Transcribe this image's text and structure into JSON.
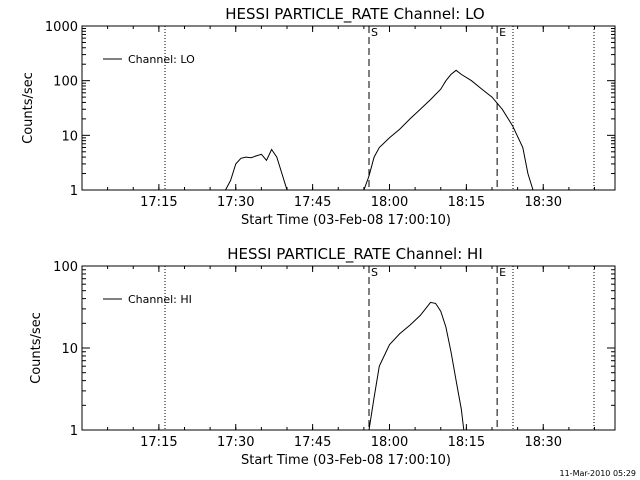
{
  "chart_data": [
    {
      "type": "line",
      "title": "HESSI PARTICLE_RATE Channel: LO",
      "xlabel": "Start Time (03-Feb-08 17:00:10)",
      "ylabel": "Counts/sec",
      "yscale": "log",
      "ylim": [
        1,
        1000
      ],
      "xlim": [
        "17:00",
        "18:44"
      ],
      "x_ticks": [
        "17:15",
        "17:30",
        "17:45",
        "18:00",
        "18:15",
        "18:30"
      ],
      "y_ticks": [
        "1",
        "10",
        "100",
        "1000"
      ],
      "legend": "top-left",
      "grid": false,
      "series": [
        {
          "name": "Channel: LO",
          "color": "#000000",
          "x": [
            "17:28",
            "17:29",
            "17:30",
            "17:31",
            "17:32",
            "17:33",
            "17:34",
            "17:35",
            "17:36",
            "17:37",
            "17:38",
            "17:39",
            "17:40",
            "17:55",
            "17:56",
            "17:57",
            "17:58",
            "18:00",
            "18:02",
            "18:04",
            "18:06",
            "18:08",
            "18:10",
            "18:11",
            "18:12",
            "18:13",
            "18:14",
            "18:16",
            "18:18",
            "18:20",
            "18:22",
            "18:24",
            "18:26",
            "18:27",
            "18:28"
          ],
          "y": [
            1,
            1.5,
            3,
            3.8,
            4,
            3.9,
            4.2,
            4.5,
            3.5,
            5.5,
            4,
            2,
            1,
            1,
            1.8,
            4,
            6,
            9,
            13,
            20,
            30,
            45,
            70,
            100,
            130,
            155,
            130,
            100,
            70,
            50,
            30,
            15,
            6,
            2,
            1
          ]
        }
      ],
      "annotations": [
        {
          "text": "S",
          "x": "17:56"
        },
        {
          "text": "E",
          "x": "18:21"
        }
      ]
    },
    {
      "type": "line",
      "title": "HESSI PARTICLE_RATE Channel: HI",
      "xlabel": "Start Time (03-Feb-08 17:00:10)",
      "ylabel": "Counts/sec",
      "yscale": "log",
      "ylim": [
        1,
        100
      ],
      "xlim": [
        "17:00",
        "18:44"
      ],
      "x_ticks": [
        "17:15",
        "17:30",
        "17:45",
        "18:00",
        "18:15",
        "18:30"
      ],
      "y_ticks": [
        "1",
        "10",
        "100"
      ],
      "legend": "top-left",
      "grid": false,
      "series": [
        {
          "name": "Channel: HI",
          "color": "#000000",
          "x": [
            "17:56",
            "17:57",
            "17:58",
            "18:00",
            "18:02",
            "18:04",
            "18:06",
            "18:07",
            "18:08",
            "18:09",
            "18:10",
            "18:11",
            "18:12",
            "18:13",
            "18:14",
            "18:14.5"
          ],
          "y": [
            1,
            2.5,
            6,
            11,
            15,
            19,
            25,
            30,
            36,
            35,
            28,
            18,
            9,
            4,
            1.8,
            1
          ]
        }
      ],
      "annotations": [
        {
          "text": "S",
          "x": "17:56"
        },
        {
          "text": "E",
          "x": "18:21"
        }
      ]
    }
  ],
  "footer": {
    "timestamp": "11-Mar-2010 05:29"
  }
}
